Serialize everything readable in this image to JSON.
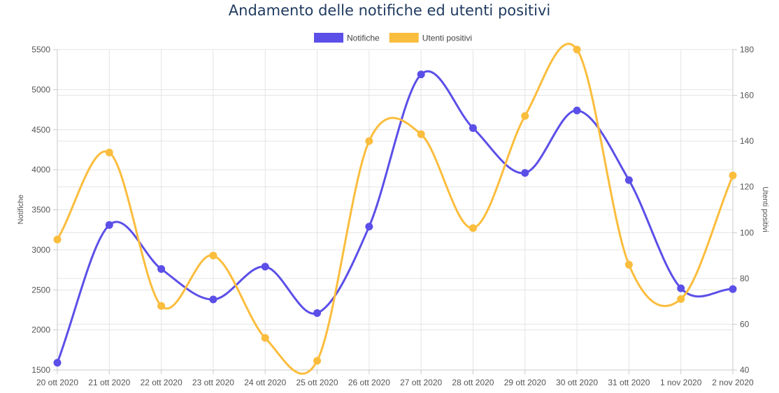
{
  "chart_data": {
    "type": "line",
    "title": "Andamento delle notifiche ed utenti positivi",
    "categories": [
      "20 ott 2020",
      "21 ott 2020",
      "22 ott 2020",
      "23 ott 2020",
      "24 ott 2020",
      "25 ott 2020",
      "26 ott 2020",
      "27 ott 2020",
      "28 ott 2020",
      "29 ott 2020",
      "30 ott 2020",
      "31 ott 2020",
      "1 nov 2020",
      "2 nov 2020"
    ],
    "series": [
      {
        "name": "Notifiche",
        "axis": "left",
        "color": "#5b4fe8",
        "values": [
          1590,
          3310,
          2760,
          2380,
          2790,
          2210,
          3290,
          5190,
          4520,
          3960,
          4740,
          3870,
          2520,
          2510
        ]
      },
      {
        "name": "Utenti positivi",
        "axis": "right",
        "color": "#fbbd3d",
        "values": [
          97,
          135,
          68,
          90,
          54,
          44,
          140,
          143,
          102,
          151,
          180,
          86,
          71,
          125
        ]
      }
    ],
    "ylabel_left": "Notifiche",
    "ylabel_right": "Utenti positivi",
    "ylim_left": [
      1500,
      5500
    ],
    "yticks_left": [
      1500,
      2000,
      2500,
      3000,
      3500,
      4000,
      4500,
      5000,
      5500
    ],
    "ylim_right": [
      40,
      180
    ],
    "yticks_right": [
      40,
      60,
      80,
      100,
      120,
      140,
      160,
      180
    ],
    "grid": true,
    "legend_position": "top-center"
  }
}
